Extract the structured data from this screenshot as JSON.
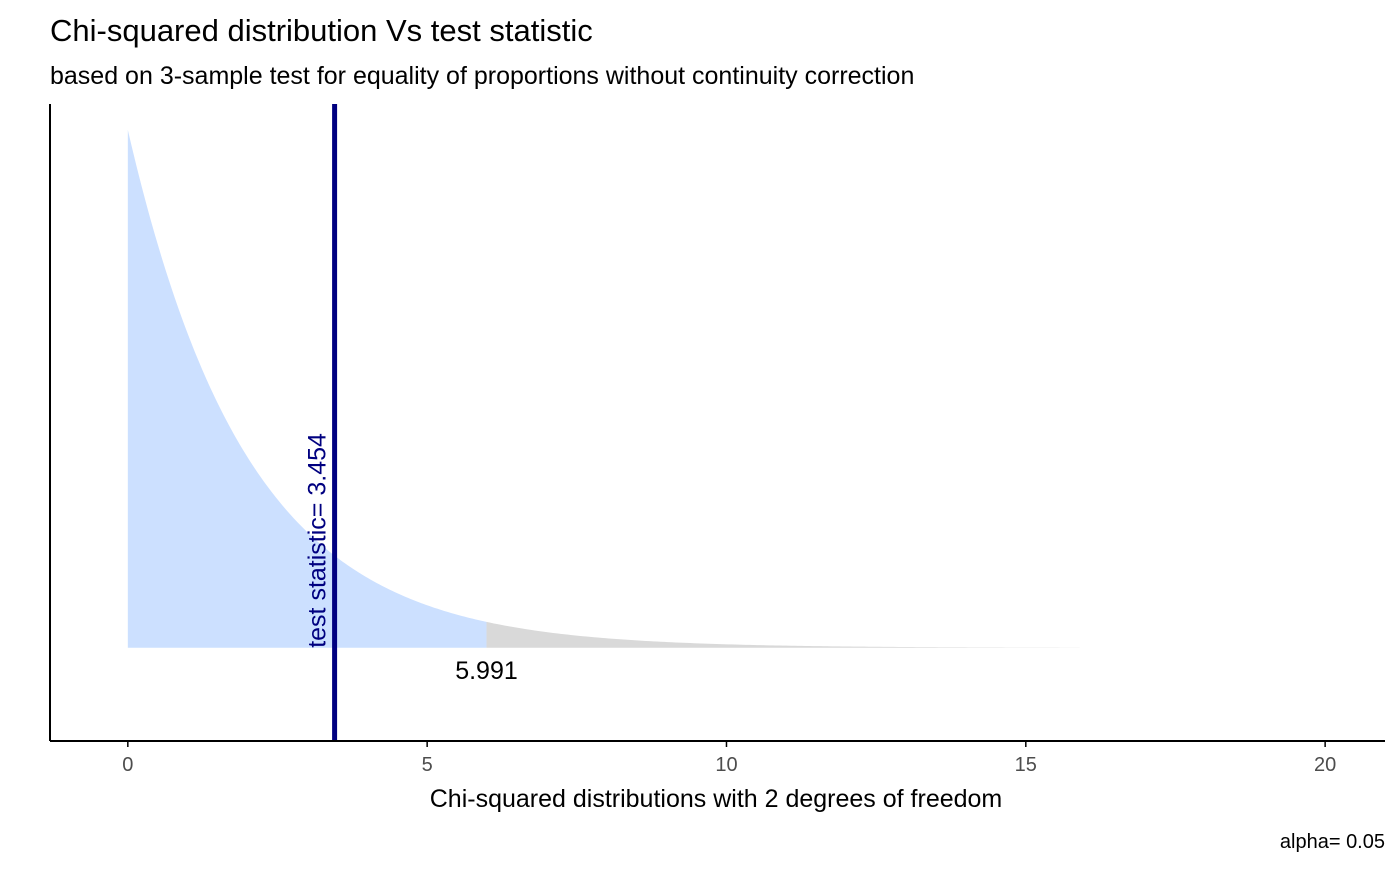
{
  "chart_data": {
    "type": "area",
    "title": "Chi-squared distribution Vs test statistic",
    "subtitle": "based on 3-sample test for equality of proportions without continuity correction",
    "xlabel": "Chi-squared distributions with 2 degrees of freedom",
    "ylabel": "",
    "caption": "alpha= 0.05",
    "degrees_of_freedom": 2,
    "xlim": [
      -1.3,
      21.0
    ],
    "ylim": [
      -0.09,
      0.525
    ],
    "x_ticks": [
      0,
      5,
      10,
      15,
      20
    ],
    "y_axis_ticks_shown": false,
    "grid": false,
    "curve_domain": [
      0,
      15.9
    ],
    "critical_value": 5.991,
    "critical_value_label": "5.991",
    "test_statistic": 3.454,
    "test_statistic_label": "test statistic= 3.454",
    "regions": [
      {
        "name": "acceptance",
        "from": 0,
        "to": 5.991,
        "color": "#cce0ff"
      },
      {
        "name": "rejection",
        "from": 5.991,
        "to": 15.9,
        "color": "#d9d9d9"
      }
    ],
    "colors": {
      "test_statistic_line": "#000080",
      "axis": "#000000",
      "tick_label": "#4d4d4d"
    }
  }
}
